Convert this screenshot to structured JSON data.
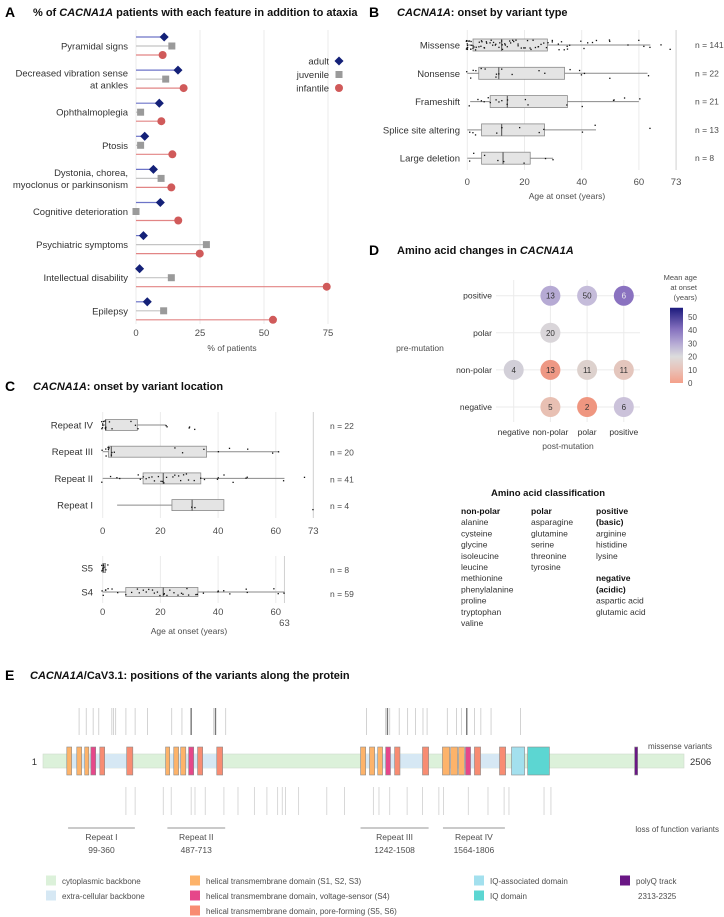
{
  "panel_labels": {
    "a": "A",
    "b": "B",
    "c": "C",
    "d": "D",
    "e": "E"
  },
  "chart_data": [
    {
      "id": "A",
      "type": "lollipop",
      "title_prefix": "% of ",
      "title_italic": "CACNA1A",
      "title_suffix": " patients with each feature in addition to ataxia",
      "xlabel": "% of patients",
      "xlim": [
        0,
        80
      ],
      "xticks": [
        0,
        25,
        50,
        75
      ],
      "grid": true,
      "legend_position": "top-right",
      "colors": {
        "adult": "#142178",
        "juvenile": "#9a9a9a",
        "infantile": "#d05a5a"
      },
      "series": [
        {
          "name": "adult",
          "values": [
            11,
            16.4,
            9.1,
            3.4,
            6.8,
            9.5,
            2.9,
            1.4,
            4.4
          ]
        },
        {
          "name": "juvenile",
          "values": [
            14,
            11.6,
            1.8,
            1.8,
            9.8,
            0,
            27.5,
            13.8,
            10.8
          ]
        },
        {
          "name": "infantile",
          "values": [
            10.4,
            18.6,
            9.9,
            14.2,
            13.8,
            16.5,
            24.9,
            74.5,
            53.5
          ]
        }
      ],
      "categories": [
        [
          "Pyramidal signs"
        ],
        [
          "Decreased vibration sense",
          "at ankles"
        ],
        [
          "Ophthalmoplegia"
        ],
        [
          "Ptosis"
        ],
        [
          "Dystonia, chorea,",
          "myoclonus or parkinsonism"
        ],
        [
          "Cognitive deterioration"
        ],
        [
          "Psychiatric symptoms"
        ],
        [
          "Intellectual disability"
        ],
        [
          "Epilepsy"
        ]
      ]
    },
    {
      "id": "B",
      "type": "boxplot",
      "title_italic": "CACNA1A",
      "title_suffix": ": onset by variant type",
      "xlabel": "Age at onset (years)",
      "xlim": [
        0,
        73
      ],
      "xticks": [
        0,
        20,
        40,
        60,
        73
      ],
      "groups": [
        {
          "label": "Missense",
          "n": "n = 141",
          "q1": 2,
          "median": 12,
          "q3": 28,
          "whisker_low": 0,
          "whisker_high": 64,
          "points": [
            0,
            0,
            0,
            0,
            0,
            0,
            0,
            0,
            0,
            0,
            1,
            1,
            1,
            1,
            1,
            2,
            2,
            2,
            3,
            3,
            4,
            4,
            5,
            5,
            5,
            6,
            6,
            7,
            7,
            8,
            8,
            9,
            9,
            10,
            10,
            11,
            11,
            12,
            12,
            12,
            13,
            13,
            14,
            15,
            15,
            16,
            16,
            17,
            18,
            18,
            19,
            20,
            20,
            21,
            22,
            22,
            23,
            24,
            25,
            25,
            26,
            27,
            28,
            28,
            30,
            30,
            32,
            32,
            33,
            34,
            35,
            35,
            36,
            40,
            41,
            42,
            44,
            45,
            50,
            50,
            56,
            60,
            62,
            64,
            68,
            71
          ]
        },
        {
          "label": "Nonsense",
          "n": "n = 22",
          "q1": 4,
          "median": 11,
          "q3": 34,
          "whisker_low": 0,
          "whisker_high": 63,
          "points": [
            0,
            1,
            2,
            3,
            5,
            6,
            10,
            10,
            11,
            12,
            16,
            25,
            27,
            36,
            39,
            40,
            41,
            50,
            63
          ]
        },
        {
          "label": "Frameshift",
          "n": "n = 21",
          "q1": 8,
          "median": 14,
          "q3": 35,
          "whisker_low": 1,
          "whisker_high": 60,
          "points": [
            1,
            4,
            5,
            6,
            7,
            8,
            10,
            11,
            12,
            14,
            14,
            20,
            21,
            35,
            40,
            51,
            51,
            55,
            60
          ]
        },
        {
          "label": "Splice site altering",
          "n": "n = 13",
          "q1": 5,
          "median": 12,
          "q3": 27,
          "whisker_low": 0,
          "whisker_high": 45,
          "points": [
            1,
            2,
            3,
            10,
            12,
            18,
            25,
            27,
            40,
            45,
            64
          ]
        },
        {
          "label": "Large deletion",
          "n": "n = 8",
          "q1": 5,
          "median": 12.5,
          "q3": 22,
          "whisker_low": 0,
          "whisker_high": 30,
          "points": [
            1,
            2,
            6,
            11,
            13,
            20,
            27,
            30
          ]
        }
      ]
    },
    {
      "id": "C",
      "type": "boxplot",
      "title_italic": "CACNA1A",
      "title_suffix": ": onset by variant location",
      "xlabel": "Age at onset (years)",
      "top": {
        "xlim": [
          0,
          73
        ],
        "xticks": [
          0,
          20,
          40,
          60,
          73
        ],
        "groups": [
          {
            "label": "Repeat IV",
            "n": "n = 22",
            "q1": 1,
            "median": 1,
            "q3": 12,
            "whisker_low": 0,
            "whisker_high": 22,
            "points": [
              0,
              0,
              0,
              0,
              0,
              0,
              1,
              1,
              1,
              1,
              2,
              3,
              10,
              11,
              12,
              22,
              22,
              30,
              30,
              32
            ]
          },
          {
            "label": "Repeat III",
            "n": "n = 20",
            "q1": 2,
            "median": 3,
            "q3": 36,
            "whisker_low": 0,
            "whisker_high": 61,
            "points": [
              0,
              1,
              1,
              2,
              2,
              2,
              3,
              3,
              4,
              25,
              28,
              35,
              40,
              44,
              50,
              59,
              61
            ]
          },
          {
            "label": "Repeat II",
            "n": "n = 41",
            "q1": 14,
            "median": 21,
            "q3": 34,
            "whisker_low": 0,
            "whisker_high": 63,
            "points": [
              0,
              3,
              5,
              6,
              12,
              13,
              14,
              15,
              16,
              17,
              18,
              19,
              20,
              21,
              21,
              22,
              24,
              25,
              26,
              27,
              28,
              29,
              30,
              32,
              34,
              35,
              40,
              40,
              42,
              45,
              50,
              50,
              63,
              70
            ]
          },
          {
            "label": "Repeat I",
            "n": "n = 4",
            "q1": 24,
            "median": 31,
            "q3": 42,
            "whisker_low": 5,
            "whisker_high": 42,
            "points": [
              31,
              32,
              73
            ]
          }
        ]
      },
      "bottom": {
        "xlim": [
          0,
          73
        ],
        "xticks": [
          0,
          20,
          40,
          60
        ],
        "extra_tick": 63,
        "groups": [
          {
            "label": "S5",
            "n": "n = 8",
            "q1": 0,
            "median": 0.3,
            "q3": 1,
            "whisker_low": 0,
            "whisker_high": 1,
            "points": [
              0,
              0,
              0,
              0,
              0,
              0.5,
              1,
              2
            ]
          },
          {
            "label": "S4",
            "n": "n = 59",
            "q1": 8,
            "median": 21,
            "q3": 33,
            "whisker_low": 0,
            "whisker_high": 63,
            "points": [
              0,
              0,
              1,
              1,
              2,
              3,
              5,
              8,
              10,
              12,
              13,
              14,
              15,
              16,
              17,
              18,
              19,
              20,
              21,
              21,
              22,
              23,
              25,
              26,
              27,
              28,
              29,
              30,
              32,
              33,
              35,
              40,
              40,
              42,
              44,
              50,
              50,
              59,
              61,
              63
            ]
          }
        ]
      }
    },
    {
      "id": "D",
      "type": "bubble-grid",
      "title_prefix": "Amino acid changes in ",
      "title_italic": "CACNA1A",
      "xlabel": "post-mutation",
      "ylabel": "pre-mutation",
      "x_categories": [
        "negative",
        "non-polar",
        "polar",
        "positive"
      ],
      "y_categories": [
        "positive",
        "polar",
        "non-polar",
        "negative"
      ],
      "legend_title": [
        "Mean age",
        "at onset",
        "(years)"
      ],
      "colorbar_ticks": [
        0,
        10,
        20,
        30,
        40,
        50
      ],
      "colorbar_range": [
        0,
        57
      ],
      "cells": [
        {
          "pre": "positive",
          "post": "non-polar",
          "count": "13",
          "color": "#b6aad4"
        },
        {
          "pre": "positive",
          "post": "polar",
          "count": "50",
          "color": "#c5bcda"
        },
        {
          "pre": "positive",
          "post": "positive",
          "count": "6",
          "color": "#8a72c0"
        },
        {
          "pre": "polar",
          "post": "non-polar",
          "count": "20",
          "color": "#d9d5d9"
        },
        {
          "pre": "non-polar",
          "post": "negative",
          "count": "4",
          "color": "#d2cfd8"
        },
        {
          "pre": "non-polar",
          "post": "non-polar",
          "count": "13",
          "color": "#ee9884"
        },
        {
          "pre": "non-polar",
          "post": "polar",
          "count": "11",
          "color": "#ddd1cd"
        },
        {
          "pre": "non-polar",
          "post": "positive",
          "count": "11",
          "color": "#e4c6bd"
        },
        {
          "pre": "negative",
          "post": "non-polar",
          "count": "5",
          "color": "#e8c0b3"
        },
        {
          "pre": "negative",
          "post": "polar",
          "count": "2",
          "color": "#ef9680"
        },
        {
          "pre": "negative",
          "post": "positive",
          "count": "6",
          "color": "#cbc2da"
        }
      ]
    },
    {
      "id": "E",
      "type": "protein-map",
      "title_italic": "CACNA1A",
      "title_suffix": "/CaV3.1: positions of the variants along the protein",
      "start_label": "1",
      "end_label": "2506",
      "length": 2506,
      "missense_label": "missense variants",
      "lof_label": "loss of function variants",
      "colors": {
        "cytoplasmic": "#dcf1da",
        "extracellular": "#d6e8f4",
        "tm": "#fdb36a",
        "voltage": "#e6478a",
        "pore": "#f88c72",
        "iq_assoc": "#a3e0ee",
        "iq": "#5cd6d2",
        "polyq": "#6a1785"
      },
      "extracellular_segments": [
        [
          113,
          328
        ],
        [
          496,
          680
        ],
        [
          1262,
          1484
        ],
        [
          1590,
          1785
        ]
      ],
      "domains": [
        {
          "type": "tm",
          "start": 94,
          "end": 113
        },
        {
          "type": "tm",
          "start": 133,
          "end": 152
        },
        {
          "type": "tm",
          "start": 164,
          "end": 180
        },
        {
          "type": "voltage",
          "start": 188,
          "end": 207
        },
        {
          "type": "pore",
          "start": 223,
          "end": 242
        },
        {
          "type": "pore",
          "start": 328,
          "end": 352
        },
        {
          "type": "tm",
          "start": 480,
          "end": 496
        },
        {
          "type": "tm",
          "start": 512,
          "end": 531
        },
        {
          "type": "tm",
          "start": 539,
          "end": 559
        },
        {
          "type": "voltage",
          "start": 570,
          "end": 590
        },
        {
          "type": "pore",
          "start": 605,
          "end": 625
        },
        {
          "type": "pore",
          "start": 680,
          "end": 703
        },
        {
          "type": "tm",
          "start": 1242,
          "end": 1262
        },
        {
          "type": "tm",
          "start": 1277,
          "end": 1297
        },
        {
          "type": "tm",
          "start": 1309,
          "end": 1328
        },
        {
          "type": "voltage",
          "start": 1340,
          "end": 1359
        },
        {
          "type": "pore",
          "start": 1375,
          "end": 1396
        },
        {
          "type": "pore",
          "start": 1484,
          "end": 1508
        },
        {
          "type": "tm",
          "start": 1562,
          "end": 1590
        },
        {
          "type": "tm",
          "start": 1594,
          "end": 1621
        },
        {
          "type": "tm",
          "start": 1625,
          "end": 1648
        },
        {
          "type": "voltage",
          "start": 1652,
          "end": 1672
        },
        {
          "type": "pore",
          "start": 1687,
          "end": 1711
        },
        {
          "type": "pore",
          "start": 1785,
          "end": 1809
        },
        {
          "type": "iq_assoc",
          "start": 1832,
          "end": 1883
        },
        {
          "type": "iq",
          "start": 1895,
          "end": 1980
        },
        {
          "type": "polyq",
          "start": 2313,
          "end": 2325
        }
      ],
      "missense_positions": [
        142,
        170,
        197,
        219,
        270,
        277,
        285,
        325,
        361,
        409,
        504,
        544,
        580,
        668,
        675,
        715,
        1265,
        1340,
        1347,
        1356,
        1393,
        1426,
        1457,
        1486,
        1502,
        1581,
        1617,
        1636,
        1657,
        1687,
        1712,
        1752,
        1867
      ],
      "missense_dark": [
        580,
        675,
        1347,
        1657
      ],
      "lof_positions": [
        325,
        361,
        471,
        502,
        580,
        595,
        635,
        708,
        763,
        827,
        876,
        918,
        936,
        949,
        1000,
        1110,
        1179,
        1292,
        1314,
        1356,
        1424,
        1484,
        1548,
        1566,
        1663,
        1740,
        1803,
        1822,
        1959,
        1986
      ],
      "repeats": [
        {
          "label": "Repeat I",
          "range": "99-360",
          "start": 99,
          "end": 360
        },
        {
          "label": "Repeat II",
          "range": "487-713",
          "start": 487,
          "end": 713
        },
        {
          "label": "Repeat III",
          "range": "1242-1508",
          "start": 1242,
          "end": 1508
        },
        {
          "label": "Repeat IV",
          "range": "1564-1806",
          "start": 1564,
          "end": 1806
        }
      ],
      "legend": [
        {
          "key": "cytoplasmic",
          "label": "cytoplasmic backbone"
        },
        {
          "key": "extracellular",
          "label": "extra-cellular backbone"
        },
        {
          "key": "tm",
          "label": "helical transmembrane domain (S1, S2, S3)"
        },
        {
          "key": "voltage",
          "label": "helical transmembrane domain, voltage-sensor (S4)"
        },
        {
          "key": "pore",
          "label": "helical transmembrane domain, pore-forming (S5, S6)"
        },
        {
          "key": "iq_assoc",
          "label": "IQ-associated domain"
        },
        {
          "key": "iq",
          "label": "IQ domain"
        },
        {
          "key": "polyq",
          "label": "polyQ track",
          "sub": "2313-2325"
        }
      ]
    }
  ],
  "classification": {
    "title": "Amino acid classification",
    "columns": [
      {
        "heading": [
          "non-polar"
        ],
        "items": [
          "alanine",
          "cysteine",
          "glycine",
          "isoleucine",
          "leucine",
          "methionine",
          "phenylalanine",
          "proline",
          "tryptophan",
          "valine"
        ]
      },
      {
        "heading": [
          "polar"
        ],
        "items": [
          "asparagine",
          "glutamine",
          "serine",
          "threonine",
          "tyrosine"
        ]
      },
      {
        "heading": [
          "positive",
          "(basic)"
        ],
        "items": [
          "arginine",
          "histidine",
          "lysine"
        ],
        "heading2": [
          "negative",
          "(acidic)"
        ],
        "items2": [
          "aspartic acid",
          "glutamic acid"
        ]
      }
    ]
  }
}
